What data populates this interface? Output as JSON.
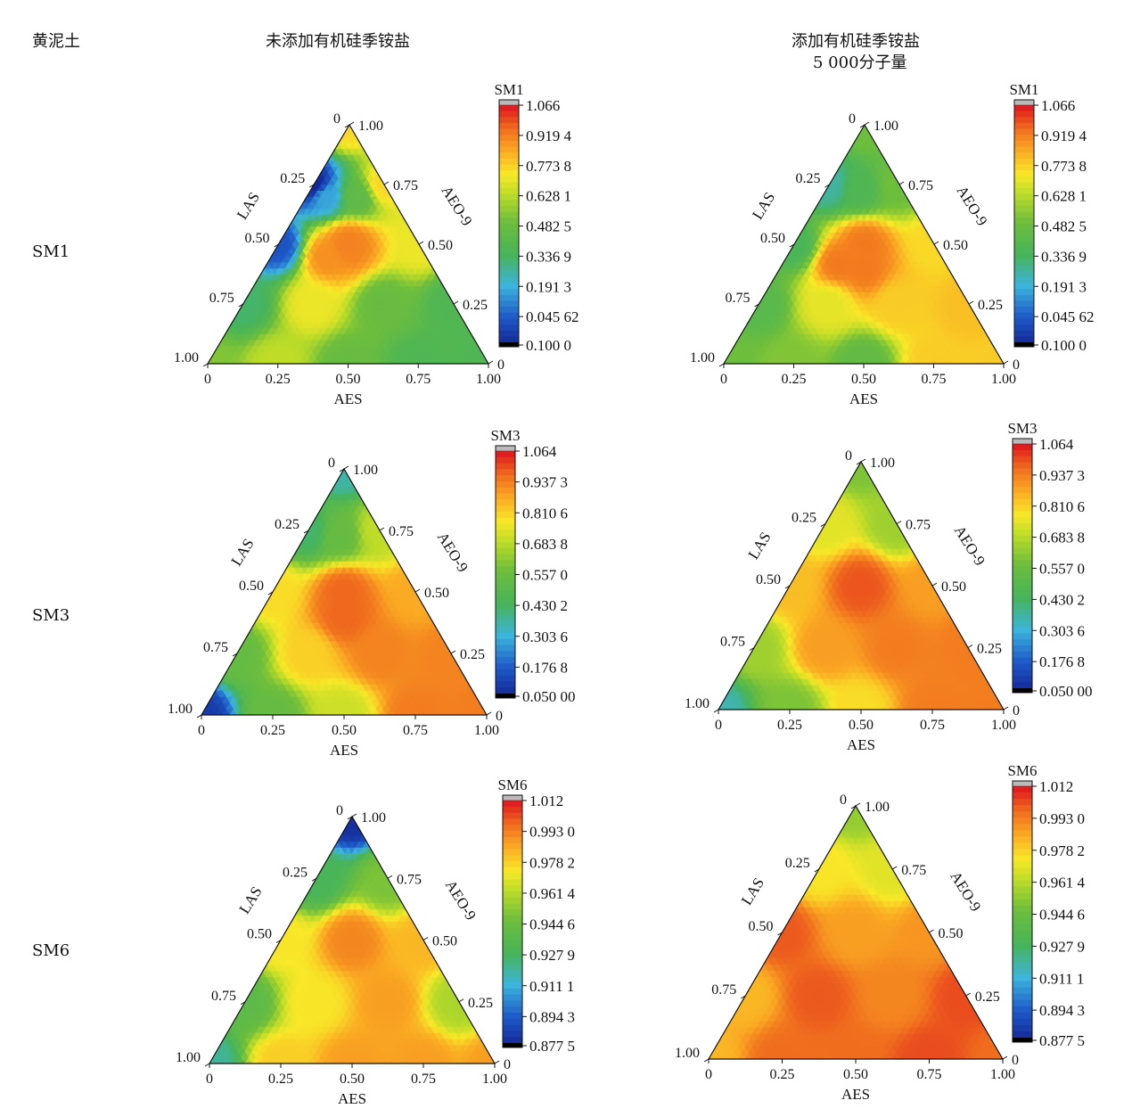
{
  "header": {
    "soil_label": "黄泥土",
    "col_without": "未添加有机硅季铵盐",
    "col_with_line1": "添加有机硅季铵盐",
    "col_with_line2": "5 000分子量"
  },
  "rows": [
    {
      "label": "SM1"
    },
    {
      "label": "SM3"
    },
    {
      "label": "SM6"
    }
  ],
  "chart_data": [
    {
      "type": "heatmap",
      "subtype": "ternary-contour",
      "panel": "SM1 未添加有机硅季铵盐",
      "xlabel": "AES",
      "left_label": "LAS",
      "right_label": "AEO-9",
      "bottom_ticks": [
        "0",
        "0.25",
        "0.50",
        "0.75",
        "1.00"
      ],
      "left_ticks": [
        "1.00",
        "0.75",
        "0.50",
        "0.25",
        "0"
      ],
      "right_ticks": [
        "1.00",
        "0.75",
        "0.50",
        "0.25",
        "0"
      ],
      "colorbar_title": "SM1",
      "colorbar_ticks": [
        "1.066",
        "0.919 4",
        "0.773 8",
        "0.628 1",
        "0.482 5",
        "0.336 9",
        "0.191 3",
        "0.045 62",
        "0.100 0"
      ],
      "colorbar_range": [
        0.1,
        1.066
      ],
      "grid_points": [
        [
          0.0,
          1.0,
          0.0,
          0.63
        ],
        [
          0.25,
          0.75,
          0.0,
          0.72
        ],
        [
          0.5,
          0.5,
          0.0,
          0.58
        ],
        [
          0.75,
          0.25,
          0.0,
          0.5
        ],
        [
          1.0,
          0.0,
          0.0,
          0.5
        ],
        [
          0.0,
          0.75,
          0.25,
          0.45
        ],
        [
          0.25,
          0.5,
          0.25,
          0.78
        ],
        [
          0.5,
          0.25,
          0.25,
          0.58
        ],
        [
          0.75,
          0.0,
          0.25,
          0.5
        ],
        [
          0.0,
          0.5,
          0.5,
          0.2
        ],
        [
          0.25,
          0.25,
          0.5,
          0.95
        ],
        [
          0.5,
          0.0,
          0.5,
          0.78
        ],
        [
          0.0,
          0.25,
          0.75,
          0.1
        ],
        [
          0.25,
          0.0,
          0.75,
          0.82
        ],
        [
          0.0,
          0.0,
          1.0,
          0.82
        ],
        [
          0.07,
          0.23,
          0.7,
          0.32
        ],
        [
          0.18,
          0.12,
          0.7,
          0.55
        ],
        [
          0.25,
          0.25,
          0.5,
          0.95
        ],
        [
          0.2,
          0.35,
          0.45,
          0.93
        ]
      ],
      "colors": {
        "high": "#e51e1e",
        "mid": "#f7ea1e",
        "low": "#1a3aa8",
        "bottom": "#000000"
      }
    },
    {
      "type": "heatmap",
      "subtype": "ternary-contour",
      "panel": "SM1 添加有机硅季铵盐 5 000分子量",
      "xlabel": "AES",
      "left_label": "LAS",
      "right_label": "AEO-9",
      "bottom_ticks": [
        "0",
        "0.25",
        "0.50",
        "0.75",
        "1.00"
      ],
      "left_ticks": [
        "1.00",
        "0.75",
        "0.50",
        "0.25",
        "0"
      ],
      "right_ticks": [
        "1.00",
        "0.75",
        "0.50",
        "0.25",
        "0"
      ],
      "colorbar_title": "SM1",
      "colorbar_ticks": [
        "1.066",
        "0.919 4",
        "0.773 8",
        "0.628 1",
        "0.482 5",
        "0.336 9",
        "0.191 3",
        "0.045 62",
        "0.100 0"
      ],
      "colorbar_range": [
        0.1,
        1.066
      ],
      "grid_points": [
        [
          0.0,
          1.0,
          0.0,
          0.6
        ],
        [
          0.25,
          0.75,
          0.0,
          0.63
        ],
        [
          0.5,
          0.5,
          0.0,
          0.56
        ],
        [
          0.75,
          0.25,
          0.0,
          0.84
        ],
        [
          1.0,
          0.0,
          0.0,
          0.84
        ],
        [
          0.0,
          0.75,
          0.25,
          0.53
        ],
        [
          0.25,
          0.5,
          0.25,
          0.77
        ],
        [
          0.5,
          0.25,
          0.25,
          0.84
        ],
        [
          0.75,
          0.0,
          0.25,
          0.86
        ],
        [
          0.0,
          0.5,
          0.5,
          0.48
        ],
        [
          0.25,
          0.25,
          0.5,
          0.96
        ],
        [
          0.5,
          0.0,
          0.5,
          0.82
        ],
        [
          0.0,
          0.25,
          0.75,
          0.4
        ],
        [
          0.25,
          0.0,
          0.75,
          0.6
        ],
        [
          0.0,
          0.0,
          1.0,
          0.6
        ],
        [
          0.12,
          0.15,
          0.73,
          0.5
        ],
        [
          0.3,
          0.3,
          0.4,
          0.96
        ],
        [
          0.2,
          0.38,
          0.42,
          0.96
        ]
      ],
      "colors": {
        "high": "#e51e1e",
        "mid": "#f7ea1e",
        "low": "#1a3aa8",
        "bottom": "#000000"
      }
    },
    {
      "type": "heatmap",
      "subtype": "ternary-contour",
      "panel": "SM3 未添加有机硅季铵盐",
      "xlabel": "AES",
      "left_label": "LAS",
      "right_label": "AEO-9",
      "bottom_ticks": [
        "0",
        "0.25",
        "0.50",
        "0.75",
        "1.00"
      ],
      "left_ticks": [
        "1.00",
        "0.75",
        "0.50",
        "0.25",
        "0"
      ],
      "right_ticks": [
        "1.00",
        "0.75",
        "0.50",
        "0.25",
        "0"
      ],
      "colorbar_title": "SM3",
      "colorbar_ticks": [
        "1.064",
        "0.937 3",
        "0.810 6",
        "0.683 8",
        "0.557 0",
        "0.430 2",
        "0.303 6",
        "0.176 8",
        "0.050 00"
      ],
      "colorbar_range": [
        0.05,
        1.064
      ],
      "grid_points": [
        [
          0.0,
          1.0,
          0.0,
          0.1
        ],
        [
          0.25,
          0.75,
          0.0,
          0.55
        ],
        [
          0.5,
          0.5,
          0.0,
          0.72
        ],
        [
          0.75,
          0.25,
          0.0,
          0.95
        ],
        [
          1.0,
          0.0,
          0.0,
          0.95
        ],
        [
          0.0,
          0.75,
          0.25,
          0.55
        ],
        [
          0.25,
          0.5,
          0.25,
          0.82
        ],
        [
          0.5,
          0.25,
          0.25,
          0.94
        ],
        [
          0.75,
          0.0,
          0.25,
          0.94
        ],
        [
          0.0,
          0.5,
          0.5,
          0.8
        ],
        [
          0.25,
          0.25,
          0.5,
          0.98
        ],
        [
          0.5,
          0.0,
          0.5,
          0.88
        ],
        [
          0.0,
          0.25,
          0.75,
          0.42
        ],
        [
          0.25,
          0.0,
          0.75,
          0.7
        ],
        [
          0.0,
          0.0,
          1.0,
          0.36
        ],
        [
          0.12,
          0.15,
          0.73,
          0.55
        ],
        [
          0.3,
          0.3,
          0.4,
          0.98
        ]
      ],
      "colors": {
        "high": "#e51e1e",
        "mid": "#f7ea1e",
        "low": "#1a3aa8",
        "bottom": "#000000"
      }
    },
    {
      "type": "heatmap",
      "subtype": "ternary-contour",
      "panel": "SM3 添加有机硅季铵盐 5 000分子量",
      "xlabel": "AES",
      "left_label": "LAS",
      "right_label": "AEO-9",
      "bottom_ticks": [
        "0",
        "0.25",
        "0.50",
        "0.75",
        "1.00"
      ],
      "left_ticks": [
        "1.00",
        "0.75",
        "0.50",
        "0.25",
        "0"
      ],
      "right_ticks": [
        "1.00",
        "0.75",
        "0.50",
        "0.25",
        "0"
      ],
      "colorbar_title": "SM3",
      "colorbar_ticks": [
        "1.064",
        "0.937 3",
        "0.810 6",
        "0.683 8",
        "0.557 0",
        "0.430 2",
        "0.303 6",
        "0.176 8",
        "0.050 00"
      ],
      "colorbar_range": [
        0.05,
        1.064
      ],
      "grid_points": [
        [
          0.0,
          1.0,
          0.0,
          0.35
        ],
        [
          0.25,
          0.75,
          0.0,
          0.6
        ],
        [
          0.5,
          0.5,
          0.0,
          0.8
        ],
        [
          0.75,
          0.25,
          0.0,
          0.95
        ],
        [
          1.0,
          0.0,
          0.0,
          0.95
        ],
        [
          0.0,
          0.75,
          0.25,
          0.65
        ],
        [
          0.25,
          0.5,
          0.25,
          0.9
        ],
        [
          0.5,
          0.25,
          0.25,
          0.95
        ],
        [
          0.75,
          0.0,
          0.25,
          0.95
        ],
        [
          0.0,
          0.5,
          0.5,
          0.85
        ],
        [
          0.25,
          0.25,
          0.5,
          1.0
        ],
        [
          0.5,
          0.0,
          0.5,
          0.9
        ],
        [
          0.0,
          0.25,
          0.75,
          0.75
        ],
        [
          0.25,
          0.0,
          0.75,
          0.65
        ],
        [
          0.0,
          0.0,
          1.0,
          0.6
        ]
      ],
      "colors": {
        "high": "#e51e1e",
        "mid": "#f7ea1e",
        "low": "#1a3aa8",
        "bottom": "#000000"
      }
    },
    {
      "type": "heatmap",
      "subtype": "ternary-contour",
      "panel": "SM6 未添加有机硅季铵盐",
      "xlabel": "AES",
      "left_label": "LAS",
      "right_label": "AEO-9",
      "bottom_ticks": [
        "0",
        "0.25",
        "0.50",
        "0.75",
        "1.00"
      ],
      "left_ticks": [
        "1.00",
        "0.75",
        "0.50",
        "0.25",
        "0"
      ],
      "right_ticks": [
        "1.00",
        "0.75",
        "0.50",
        "0.25",
        "0"
      ],
      "colorbar_title": "SM6",
      "colorbar_ticks": [
        "1.012",
        "0.993 0",
        "0.978 2",
        "0.961 4",
        "0.944 6",
        "0.927 9",
        "0.911 1",
        "0.894 3",
        "0.877 5"
      ],
      "colorbar_range": [
        0.8775,
        1.012
      ],
      "grid_points": [
        [
          0.0,
          1.0,
          0.0,
          0.92
        ],
        [
          0.25,
          0.75,
          0.0,
          0.98
        ],
        [
          0.5,
          0.5,
          0.0,
          0.99
        ],
        [
          0.75,
          0.25,
          0.0,
          0.99
        ],
        [
          1.0,
          0.0,
          0.0,
          0.99
        ],
        [
          0.0,
          0.75,
          0.25,
          0.94
        ],
        [
          0.25,
          0.5,
          0.25,
          0.975
        ],
        [
          0.5,
          0.25,
          0.25,
          0.99
        ],
        [
          0.75,
          0.0,
          0.25,
          0.96
        ],
        [
          0.0,
          0.5,
          0.5,
          0.975
        ],
        [
          0.25,
          0.25,
          0.5,
          0.995
        ],
        [
          0.5,
          0.0,
          0.5,
          0.985
        ],
        [
          0.0,
          0.25,
          0.75,
          0.93
        ],
        [
          0.25,
          0.0,
          0.75,
          0.95
        ],
        [
          0.0,
          0.0,
          1.0,
          0.88
        ]
      ],
      "colors": {
        "high": "#e51e1e",
        "mid": "#f7ea1e",
        "low": "#1a3aa8",
        "bottom": "#000000"
      }
    },
    {
      "type": "heatmap",
      "subtype": "ternary-contour",
      "panel": "SM6 添加有机硅季铵盐 5 000分子量",
      "xlabel": "AES",
      "left_label": "LAS",
      "right_label": "AEO-9",
      "bottom_ticks": [
        "0",
        "0.25",
        "0.50",
        "0.75",
        "1.00"
      ],
      "left_ticks": [
        "1.00",
        "0.75",
        "0.50",
        "0.25",
        "0"
      ],
      "right_ticks": [
        "1.00",
        "0.75",
        "0.50",
        "0.25",
        "0"
      ],
      "colorbar_title": "SM6",
      "colorbar_ticks": [
        "1.012",
        "0.993 0",
        "0.978 2",
        "0.961 4",
        "0.944 6",
        "0.927 9",
        "0.911 1",
        "0.894 3",
        "0.877 5"
      ],
      "colorbar_range": [
        0.8775,
        1.012
      ],
      "grid_points": [
        [
          0.0,
          1.0,
          0.0,
          0.985
        ],
        [
          0.25,
          0.75,
          0.0,
          1.0
        ],
        [
          0.5,
          0.5,
          0.0,
          1.0
        ],
        [
          0.75,
          0.25,
          0.0,
          1.005
        ],
        [
          1.0,
          0.0,
          0.0,
          1.0
        ],
        [
          0.0,
          0.75,
          0.25,
          0.985
        ],
        [
          0.25,
          0.5,
          0.25,
          1.003
        ],
        [
          0.5,
          0.25,
          0.25,
          0.995
        ],
        [
          0.75,
          0.0,
          0.25,
          1.005
        ],
        [
          0.0,
          0.5,
          0.5,
          1.003
        ],
        [
          0.25,
          0.25,
          0.5,
          0.99
        ],
        [
          0.5,
          0.0,
          0.5,
          0.992
        ],
        [
          0.0,
          0.25,
          0.75,
          0.975
        ],
        [
          0.25,
          0.0,
          0.75,
          0.97
        ],
        [
          0.0,
          0.0,
          1.0,
          0.955
        ]
      ],
      "colors": {
        "high": "#e51e1e",
        "mid": "#f7ea1e",
        "low": "#1a3aa8",
        "bottom": "#000000"
      }
    }
  ]
}
